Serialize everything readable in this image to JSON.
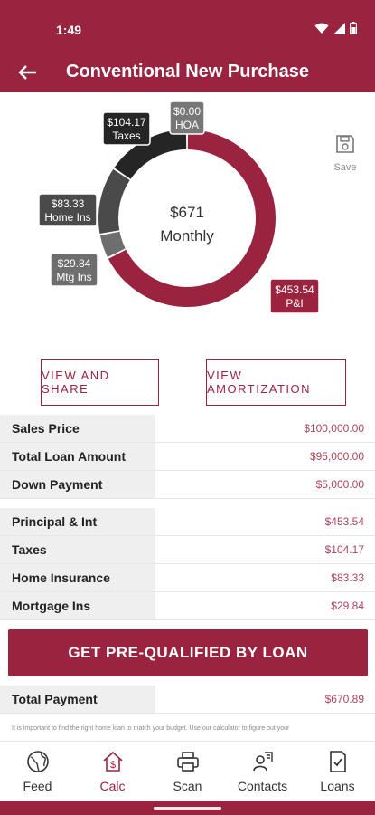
{
  "status_bar": {
    "time": "1:49"
  },
  "header": {
    "title": "Conventional New Purchase"
  },
  "toolbar": {
    "save_label": "Save"
  },
  "chart_data": {
    "type": "pie",
    "center_amount": "$671",
    "center_label": "Monthly",
    "slices": [
      {
        "name": "P&I",
        "value": 453.54,
        "amount": "$453.54",
        "label": "P&I",
        "color": "#9a2440"
      },
      {
        "name": "Mtg Ins",
        "value": 29.84,
        "amount": "$29.84",
        "label": "Mtg Ins",
        "color": "#6e6e6e"
      },
      {
        "name": "Home Ins",
        "value": 83.33,
        "amount": "$83.33",
        "label": "Home Ins",
        "color": "#4a4a4a"
      },
      {
        "name": "Taxes",
        "value": 104.17,
        "amount": "$104.17",
        "label": "Taxes",
        "color": "#252525"
      },
      {
        "name": "HOA",
        "value": 0.0,
        "amount": "$0.00",
        "label": "HOA",
        "color": "#777777"
      }
    ]
  },
  "actions": {
    "view_share": "VIEW AND SHARE",
    "view_amortization": "VIEW AMORTIZATION"
  },
  "loan_table": [
    {
      "label": "Sales Price",
      "value": "$100,000.00"
    },
    {
      "label": "Total Loan Amount",
      "value": "$95,000.00"
    },
    {
      "label": "Down Payment",
      "value": "$5,000.00"
    }
  ],
  "payment_table": [
    {
      "label": "Principal & Int",
      "value": "$453.54"
    },
    {
      "label": "Taxes",
      "value": "$104.17"
    },
    {
      "label": "Home Insurance",
      "value": "$83.33"
    },
    {
      "label": "Mortgage Ins",
      "value": "$29.84"
    }
  ],
  "cta_label": "GET PRE-QUALIFIED BY LOAN",
  "total": {
    "label": "Total Payment",
    "value": "$670.89"
  },
  "disclaimer": "It is important to find the right home loan to match your budget. Use our calculator to figure out your",
  "nav": [
    {
      "label": "Feed",
      "icon": "globe-icon"
    },
    {
      "label": "Calc",
      "icon": "home-dollar-icon"
    },
    {
      "label": "Scan",
      "icon": "printer-icon"
    },
    {
      "label": "Contacts",
      "icon": "contacts-icon"
    },
    {
      "label": "Loans",
      "icon": "document-check-icon"
    }
  ],
  "nav_active": "Calc"
}
